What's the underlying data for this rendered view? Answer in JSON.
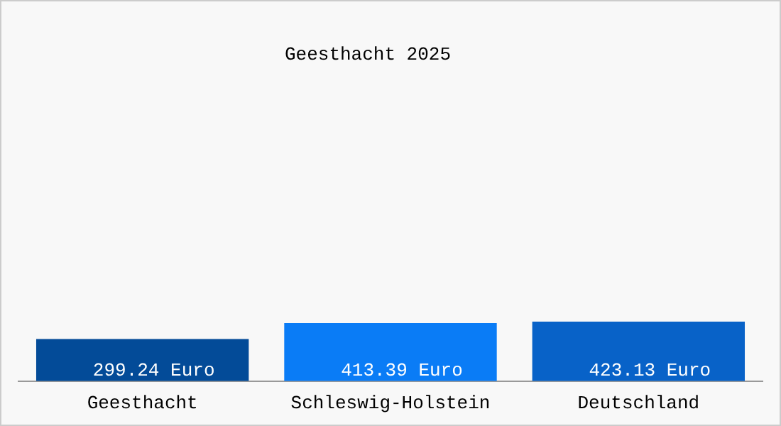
{
  "chart_data": {
    "type": "bar",
    "title": "Geesthacht 2025",
    "tick_labels": "x",
    "categories": [
      "Geesthacht",
      "Schleswig-Holstein",
      "Deutschland"
    ],
    "values": [
      299.24,
      413.39,
      423.13
    ],
    "value_labels": [
      "299.24 Euro",
      "413.39 Euro",
      "423.13 Euro"
    ],
    "colors": [
      "#034b98",
      "#0a7cf6",
      "#0862c8"
    ]
  }
}
